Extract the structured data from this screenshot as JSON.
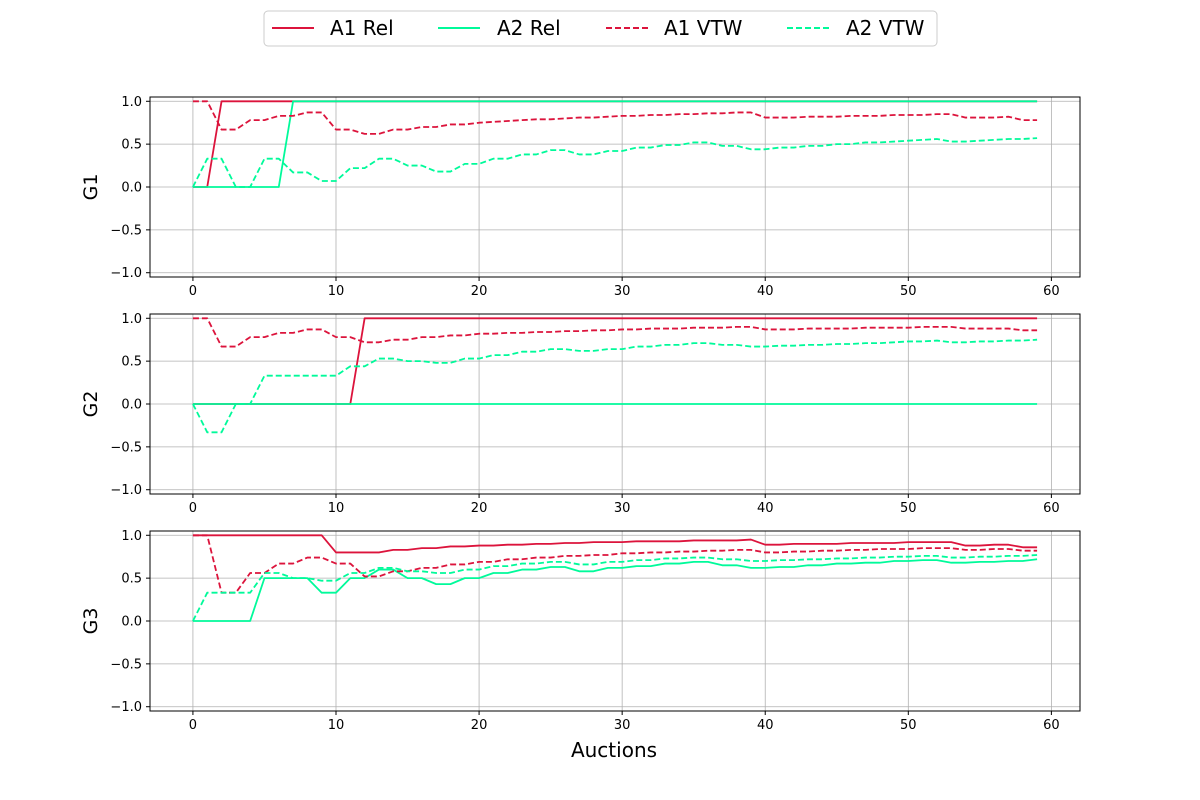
{
  "legend": {
    "placement": "top-center",
    "entries": [
      {
        "label": "A1 Rel",
        "color": "#dc143c",
        "style": "solid"
      },
      {
        "label": "A2 Rel",
        "color": "#00fa9a",
        "style": "solid"
      },
      {
        "label": "A1 VTW",
        "color": "#dc143c",
        "style": "dashed"
      },
      {
        "label": "A2 VTW",
        "color": "#00fa9a",
        "style": "dashed"
      }
    ]
  },
  "chart_data": [
    {
      "type": "line",
      "ylabel": "G1",
      "xlabel": "",
      "xlim": [
        -3,
        62
      ],
      "ylim": [
        -1.05,
        1.05
      ],
      "xticks": [
        0,
        10,
        20,
        30,
        40,
        50,
        60
      ],
      "yticks": [
        -1.0,
        -0.5,
        0.0,
        0.5,
        1.0
      ],
      "grid": true,
      "x": [
        0,
        1,
        2,
        3,
        4,
        5,
        6,
        7,
        8,
        9,
        10,
        11,
        12,
        13,
        14,
        15,
        16,
        17,
        18,
        19,
        20,
        21,
        22,
        23,
        24,
        25,
        26,
        27,
        28,
        29,
        30,
        31,
        32,
        33,
        34,
        35,
        36,
        37,
        38,
        39,
        40,
        41,
        42,
        43,
        44,
        45,
        46,
        47,
        48,
        49,
        50,
        51,
        52,
        53,
        54,
        55,
        56,
        57,
        58,
        59
      ],
      "series": [
        {
          "name": "A1 Rel",
          "color": "#dc143c",
          "style": "solid",
          "values": [
            0,
            0,
            1,
            1,
            1,
            1,
            1,
            1,
            1,
            1,
            1,
            1,
            1,
            1,
            1,
            1,
            1,
            1,
            1,
            1,
            1,
            1,
            1,
            1,
            1,
            1,
            1,
            1,
            1,
            1,
            1,
            1,
            1,
            1,
            1,
            1,
            1,
            1,
            1,
            1,
            1,
            1,
            1,
            1,
            1,
            1,
            1,
            1,
            1,
            1,
            1,
            1,
            1,
            1,
            1,
            1,
            1,
            1,
            1,
            1
          ]
        },
        {
          "name": "A2 Rel",
          "color": "#00fa9a",
          "style": "solid",
          "values": [
            0,
            0,
            0,
            0,
            0,
            0,
            0,
            1,
            1,
            1,
            1,
            1,
            1,
            1,
            1,
            1,
            1,
            1,
            1,
            1,
            1,
            1,
            1,
            1,
            1,
            1,
            1,
            1,
            1,
            1,
            1,
            1,
            1,
            1,
            1,
            1,
            1,
            1,
            1,
            1,
            1,
            1,
            1,
            1,
            1,
            1,
            1,
            1,
            1,
            1,
            1,
            1,
            1,
            1,
            1,
            1,
            1,
            1,
            1,
            1
          ]
        },
        {
          "name": "A1 VTW",
          "color": "#dc143c",
          "style": "dashed",
          "values": [
            1.0,
            1.0,
            0.67,
            0.67,
            0.78,
            0.78,
            0.83,
            0.83,
            0.87,
            0.87,
            0.67,
            0.67,
            0.62,
            0.62,
            0.67,
            0.67,
            0.7,
            0.7,
            0.73,
            0.73,
            0.75,
            0.76,
            0.77,
            0.78,
            0.79,
            0.79,
            0.8,
            0.81,
            0.81,
            0.82,
            0.83,
            0.83,
            0.84,
            0.84,
            0.85,
            0.85,
            0.86,
            0.86,
            0.87,
            0.87,
            0.81,
            0.81,
            0.81,
            0.82,
            0.82,
            0.82,
            0.83,
            0.83,
            0.83,
            0.84,
            0.84,
            0.84,
            0.85,
            0.85,
            0.81,
            0.81,
            0.81,
            0.82,
            0.78,
            0.78
          ]
        },
        {
          "name": "A2 VTW",
          "color": "#00fa9a",
          "style": "dashed",
          "values": [
            0.0,
            0.33,
            0.33,
            0.0,
            0.0,
            0.33,
            0.33,
            0.17,
            0.17,
            0.07,
            0.07,
            0.22,
            0.22,
            0.33,
            0.33,
            0.25,
            0.25,
            0.18,
            0.18,
            0.27,
            0.27,
            0.33,
            0.33,
            0.38,
            0.38,
            0.43,
            0.43,
            0.38,
            0.38,
            0.42,
            0.42,
            0.46,
            0.46,
            0.49,
            0.49,
            0.52,
            0.52,
            0.48,
            0.48,
            0.44,
            0.44,
            0.46,
            0.46,
            0.48,
            0.48,
            0.5,
            0.5,
            0.52,
            0.52,
            0.53,
            0.54,
            0.55,
            0.56,
            0.53,
            0.53,
            0.54,
            0.55,
            0.56,
            0.56,
            0.57
          ]
        }
      ]
    },
    {
      "type": "line",
      "ylabel": "G2",
      "xlabel": "",
      "xlim": [
        -3,
        62
      ],
      "ylim": [
        -1.05,
        1.05
      ],
      "xticks": [
        0,
        10,
        20,
        30,
        40,
        50,
        60
      ],
      "yticks": [
        -1.0,
        -0.5,
        0.0,
        0.5,
        1.0
      ],
      "grid": true,
      "x": [
        0,
        1,
        2,
        3,
        4,
        5,
        6,
        7,
        8,
        9,
        10,
        11,
        12,
        13,
        14,
        15,
        16,
        17,
        18,
        19,
        20,
        21,
        22,
        23,
        24,
        25,
        26,
        27,
        28,
        29,
        30,
        31,
        32,
        33,
        34,
        35,
        36,
        37,
        38,
        39,
        40,
        41,
        42,
        43,
        44,
        45,
        46,
        47,
        48,
        49,
        50,
        51,
        52,
        53,
        54,
        55,
        56,
        57,
        58,
        59
      ],
      "series": [
        {
          "name": "A1 Rel",
          "color": "#dc143c",
          "style": "solid",
          "values": [
            0,
            0,
            0,
            0,
            0,
            0,
            0,
            0,
            0,
            0,
            0,
            0,
            1,
            1,
            1,
            1,
            1,
            1,
            1,
            1,
            1,
            1,
            1,
            1,
            1,
            1,
            1,
            1,
            1,
            1,
            1,
            1,
            1,
            1,
            1,
            1,
            1,
            1,
            1,
            1,
            1,
            1,
            1,
            1,
            1,
            1,
            1,
            1,
            1,
            1,
            1,
            1,
            1,
            1,
            1,
            1,
            1,
            1,
            1,
            1
          ]
        },
        {
          "name": "A2 Rel",
          "color": "#00fa9a",
          "style": "solid",
          "values": [
            0,
            0,
            0,
            0,
            0,
            0,
            0,
            0,
            0,
            0,
            0,
            0,
            0,
            0,
            0,
            0,
            0,
            0,
            0,
            0,
            0,
            0,
            0,
            0,
            0,
            0,
            0,
            0,
            0,
            0,
            0,
            0,
            0,
            0,
            0,
            0,
            0,
            0,
            0,
            0,
            0,
            0,
            0,
            0,
            0,
            0,
            0,
            0,
            0,
            0,
            0,
            0,
            0,
            0,
            0,
            0,
            0,
            0,
            0,
            0
          ]
        },
        {
          "name": "A1 VTW",
          "color": "#dc143c",
          "style": "dashed",
          "values": [
            1.0,
            1.0,
            0.67,
            0.67,
            0.78,
            0.78,
            0.83,
            0.83,
            0.87,
            0.87,
            0.78,
            0.78,
            0.72,
            0.72,
            0.75,
            0.75,
            0.78,
            0.78,
            0.8,
            0.8,
            0.82,
            0.82,
            0.83,
            0.83,
            0.84,
            0.84,
            0.85,
            0.85,
            0.86,
            0.86,
            0.87,
            0.87,
            0.88,
            0.88,
            0.88,
            0.89,
            0.89,
            0.89,
            0.9,
            0.9,
            0.87,
            0.87,
            0.87,
            0.88,
            0.88,
            0.88,
            0.88,
            0.89,
            0.89,
            0.89,
            0.89,
            0.9,
            0.9,
            0.9,
            0.88,
            0.88,
            0.88,
            0.88,
            0.86,
            0.86
          ]
        },
        {
          "name": "A2 VTW",
          "color": "#00fa9a",
          "style": "dashed",
          "values": [
            0.0,
            -0.33,
            -0.33,
            0.0,
            0.0,
            0.33,
            0.33,
            0.33,
            0.33,
            0.33,
            0.33,
            0.44,
            0.44,
            0.53,
            0.53,
            0.5,
            0.5,
            0.48,
            0.48,
            0.53,
            0.53,
            0.57,
            0.57,
            0.61,
            0.61,
            0.64,
            0.64,
            0.62,
            0.62,
            0.64,
            0.64,
            0.67,
            0.67,
            0.69,
            0.69,
            0.71,
            0.71,
            0.69,
            0.69,
            0.67,
            0.67,
            0.68,
            0.68,
            0.69,
            0.69,
            0.7,
            0.7,
            0.71,
            0.71,
            0.72,
            0.73,
            0.73,
            0.74,
            0.72,
            0.72,
            0.73,
            0.73,
            0.74,
            0.74,
            0.75
          ]
        }
      ]
    },
    {
      "type": "line",
      "ylabel": "G3",
      "xlabel": "Auctions",
      "xlim": [
        -3,
        62
      ],
      "ylim": [
        -1.05,
        1.05
      ],
      "xticks": [
        0,
        10,
        20,
        30,
        40,
        50,
        60
      ],
      "yticks": [
        -1.0,
        -0.5,
        0.0,
        0.5,
        1.0
      ],
      "grid": true,
      "x": [
        0,
        1,
        2,
        3,
        4,
        5,
        6,
        7,
        8,
        9,
        10,
        11,
        12,
        13,
        14,
        15,
        16,
        17,
        18,
        19,
        20,
        21,
        22,
        23,
        24,
        25,
        26,
        27,
        28,
        29,
        30,
        31,
        32,
        33,
        34,
        35,
        36,
        37,
        38,
        39,
        40,
        41,
        42,
        43,
        44,
        45,
        46,
        47,
        48,
        49,
        50,
        51,
        52,
        53,
        54,
        55,
        56,
        57,
        58,
        59
      ],
      "series": [
        {
          "name": "A1 Rel",
          "color": "#dc143c",
          "style": "solid",
          "values": [
            1,
            1,
            1,
            1,
            1,
            1,
            1,
            1,
            1,
            1,
            0.8,
            0.8,
            0.8,
            0.8,
            0.83,
            0.83,
            0.85,
            0.85,
            0.87,
            0.87,
            0.88,
            0.88,
            0.89,
            0.89,
            0.9,
            0.9,
            0.91,
            0.91,
            0.92,
            0.92,
            0.92,
            0.93,
            0.93,
            0.93,
            0.93,
            0.94,
            0.94,
            0.94,
            0.94,
            0.95,
            0.89,
            0.89,
            0.9,
            0.9,
            0.9,
            0.9,
            0.91,
            0.91,
            0.91,
            0.91,
            0.92,
            0.92,
            0.92,
            0.92,
            0.88,
            0.88,
            0.89,
            0.89,
            0.86,
            0.86
          ]
        },
        {
          "name": "A2 Rel",
          "color": "#00fa9a",
          "style": "solid",
          "values": [
            0,
            0,
            0,
            0,
            0,
            0.5,
            0.5,
            0.5,
            0.5,
            0.33,
            0.33,
            0.5,
            0.5,
            0.6,
            0.6,
            0.5,
            0.5,
            0.43,
            0.43,
            0.5,
            0.5,
            0.56,
            0.56,
            0.6,
            0.6,
            0.63,
            0.63,
            0.58,
            0.58,
            0.62,
            0.62,
            0.64,
            0.64,
            0.67,
            0.67,
            0.69,
            0.69,
            0.65,
            0.65,
            0.62,
            0.62,
            0.63,
            0.63,
            0.65,
            0.65,
            0.67,
            0.67,
            0.68,
            0.68,
            0.7,
            0.7,
            0.71,
            0.71,
            0.68,
            0.68,
            0.69,
            0.69,
            0.7,
            0.7,
            0.72
          ]
        },
        {
          "name": "A1 VTW",
          "color": "#dc143c",
          "style": "dashed",
          "values": [
            1.0,
            1.0,
            0.33,
            0.33,
            0.56,
            0.56,
            0.67,
            0.67,
            0.74,
            0.74,
            0.67,
            0.67,
            0.52,
            0.52,
            0.58,
            0.58,
            0.62,
            0.62,
            0.66,
            0.66,
            0.69,
            0.69,
            0.72,
            0.72,
            0.74,
            0.74,
            0.76,
            0.76,
            0.77,
            0.77,
            0.79,
            0.79,
            0.8,
            0.8,
            0.81,
            0.81,
            0.82,
            0.82,
            0.83,
            0.83,
            0.8,
            0.8,
            0.81,
            0.81,
            0.82,
            0.82,
            0.83,
            0.83,
            0.84,
            0.84,
            0.84,
            0.85,
            0.85,
            0.85,
            0.83,
            0.83,
            0.84,
            0.84,
            0.82,
            0.82
          ]
        },
        {
          "name": "A2 VTW",
          "color": "#00fa9a",
          "style": "dashed",
          "values": [
            0.0,
            0.33,
            0.33,
            0.33,
            0.33,
            0.56,
            0.56,
            0.5,
            0.5,
            0.47,
            0.47,
            0.56,
            0.56,
            0.62,
            0.62,
            0.58,
            0.58,
            0.56,
            0.56,
            0.6,
            0.6,
            0.64,
            0.64,
            0.67,
            0.67,
            0.69,
            0.69,
            0.66,
            0.66,
            0.69,
            0.69,
            0.71,
            0.71,
            0.73,
            0.73,
            0.74,
            0.74,
            0.72,
            0.72,
            0.7,
            0.7,
            0.71,
            0.71,
            0.72,
            0.72,
            0.73,
            0.73,
            0.74,
            0.74,
            0.75,
            0.75,
            0.76,
            0.76,
            0.74,
            0.74,
            0.75,
            0.75,
            0.76,
            0.76,
            0.77
          ]
        }
      ]
    }
  ]
}
